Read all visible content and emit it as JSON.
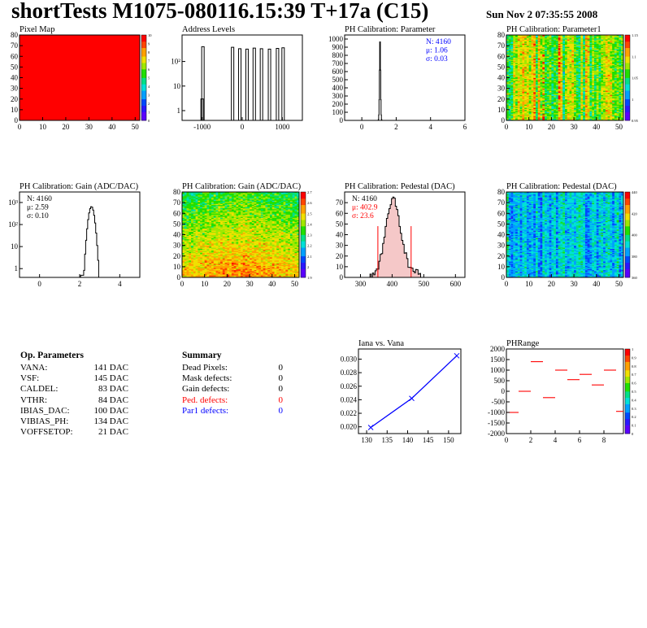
{
  "header": {
    "title": "shortTests M1075-080116.15:39 T+17a (C15)",
    "date": "Sun Nov  2 07:35:55 2008"
  },
  "palette": [
    "#5a00ff",
    "#2a18ff",
    "#0048ff",
    "#00a0ff",
    "#00e0d8",
    "#00e088",
    "#20e000",
    "#a0e800",
    "#f0e000",
    "#ffa000",
    "#ff4400",
    "#ff0000"
  ],
  "op_params": {
    "title": "Op. Parameters",
    "rows": [
      {
        "k": "VANA:",
        "v": "141 DAC"
      },
      {
        "k": "VSF:",
        "v": "145 DAC"
      },
      {
        "k": "CALDEL:",
        "v": "83 DAC"
      },
      {
        "k": "VTHR:",
        "v": "84 DAC"
      },
      {
        "k": "IBIAS_DAC:",
        "v": "100 DAC"
      },
      {
        "k": "VIBIAS_PH:",
        "v": "134 DAC"
      },
      {
        "k": "VOFFSETOP:",
        "v": "21 DAC"
      }
    ]
  },
  "summary": {
    "title": "Summary",
    "rows": [
      {
        "k": "Dead Pixels:",
        "v": "0",
        "color": "#000000"
      },
      {
        "k": "Mask defects:",
        "v": "0",
        "color": "#000000"
      },
      {
        "k": "Gain defects:",
        "v": "0",
        "color": "#000000"
      },
      {
        "k": "Ped. defects:",
        "v": "0",
        "color": "#ff0000"
      },
      {
        "k": "Par1 defects:",
        "v": "0",
        "color": "#0000ff"
      }
    ]
  },
  "chart_data": [
    {
      "id": "pixel_map",
      "type": "heatmap",
      "title": "Pixel Map",
      "xlim": [
        0,
        52
      ],
      "ylim": [
        0,
        80
      ],
      "xticks": [
        0,
        10,
        20,
        30,
        40,
        50
      ],
      "yticks": [
        0,
        10,
        20,
        30,
        40,
        50,
        60,
        70,
        80
      ],
      "z_uniform": 10,
      "zticks": [
        "0",
        "1",
        "2",
        "3",
        "4",
        "5",
        "6",
        "7",
        "8",
        "9",
        "10"
      ]
    },
    {
      "id": "address_levels",
      "type": "bar",
      "title": "Address Levels",
      "xlim": [
        -1500,
        1500
      ],
      "log_y": true,
      "xticks": [
        -1000,
        0,
        1000
      ],
      "yticks": [
        {
          "v": 1,
          "l": "1"
        },
        {
          "v": 10,
          "l": "10"
        },
        {
          "v": 100,
          "l": "10²"
        }
      ],
      "ymin": 0.4,
      "ymax": 1200,
      "peaks": [
        {
          "x": -1000,
          "y": 3
        },
        {
          "x": -980,
          "y": 400
        },
        {
          "x": -240,
          "y": 380
        },
        {
          "x": -60,
          "y": 330
        },
        {
          "x": 120,
          "y": 320
        },
        {
          "x": 300,
          "y": 350
        },
        {
          "x": 480,
          "y": 330
        },
        {
          "x": 680,
          "y": 320
        },
        {
          "x": 880,
          "y": 340
        },
        {
          "x": 1020,
          "y": 360
        }
      ]
    },
    {
      "id": "ph_param",
      "type": "bar",
      "title": "PH Calibration: Parameter",
      "xlim": [
        -1,
        6
      ],
      "ylim": [
        0,
        1050
      ],
      "xticks": [
        0,
        2,
        4,
        6
      ],
      "yticks": [
        0,
        100,
        200,
        300,
        400,
        500,
        600,
        700,
        800,
        900,
        1000
      ],
      "stats": [
        {
          "t": "N: 4160",
          "c": "#0000ff"
        },
        {
          "t": "μ: 1.06",
          "c": "#0000ff"
        },
        {
          "t": "σ: 0.03",
          "c": "#0000ff"
        }
      ],
      "mean": 1.06,
      "sigma": 0.03,
      "peak": 1020
    },
    {
      "id": "ph_param1_map",
      "type": "heatmap",
      "title": "PH Calibration: Parameter1",
      "xlim": [
        0,
        52
      ],
      "ylim": [
        0,
        80
      ],
      "xticks": [
        0,
        10,
        20,
        30,
        40,
        50
      ],
      "yticks": [
        0,
        10,
        20,
        30,
        40,
        50,
        60,
        70,
        80
      ],
      "zticks": [
        "0.95",
        "1",
        "1.05",
        "1.1",
        "1.15"
      ]
    },
    {
      "id": "ph_gain",
      "type": "bar",
      "title": "PH Calibration: Gain (ADC/DAC)",
      "xlim": [
        -1,
        5
      ],
      "log_y": true,
      "xticks": [
        0,
        2,
        4
      ],
      "yticks": [
        {
          "v": 1,
          "l": "1"
        },
        {
          "v": 10,
          "l": "10"
        },
        {
          "v": 100,
          "l": "10²"
        },
        {
          "v": 1000,
          "l": "10³"
        }
      ],
      "ymin": 0.4,
      "ymax": 3000,
      "stats": [
        {
          "t": "N: 4160",
          "c": "#000000"
        },
        {
          "t": "μ: 2.59",
          "c": "#000000"
        },
        {
          "t": "σ: 0.10",
          "c": "#000000"
        }
      ],
      "mean": 2.59,
      "sigma": 0.1,
      "peak": 650
    },
    {
      "id": "ph_gain_map",
      "type": "heatmap",
      "title": "PH Calibration: Gain (ADC/DAC)",
      "xlim": [
        0,
        52
      ],
      "ylim": [
        0,
        80
      ],
      "xticks": [
        0,
        10,
        20,
        30,
        40,
        50
      ],
      "yticks": [
        0,
        10,
        20,
        30,
        40,
        50,
        60,
        70,
        80
      ],
      "zticks": [
        "1.9",
        "2",
        "2.1",
        "2.2",
        "2.3",
        "2.4",
        "2.5",
        "2.6",
        "2.7"
      ]
    },
    {
      "id": "ph_pedestal",
      "type": "bar",
      "title": "PH Calibration: Pedestal (DAC)",
      "xlim": [
        250,
        630
      ],
      "ylim": [
        0,
        80
      ],
      "xticks": [
        300,
        400,
        500,
        600
      ],
      "yticks": [
        0,
        10,
        20,
        30,
        40,
        50,
        60,
        70
      ],
      "stats": [
        {
          "t": "N: 4160",
          "c": "#000000"
        },
        {
          "t": "μ: 402.9",
          "c": "#ff0000"
        },
        {
          "t": "σ: 23.6",
          "c": "#ff0000"
        }
      ],
      "mean": 402.9,
      "sigma": 23.6,
      "peak": 73,
      "cut_lines": [
        355,
        460
      ]
    },
    {
      "id": "ph_pedestal_map",
      "type": "heatmap",
      "title": "PH Calibration: Pedestal (DAC)",
      "xlim": [
        0,
        52
      ],
      "ylim": [
        0,
        80
      ],
      "xticks": [
        0,
        10,
        20,
        30,
        40,
        50
      ],
      "yticks": [
        0,
        10,
        20,
        30,
        40,
        50,
        60,
        70,
        80
      ],
      "zticks": [
        "360",
        "380",
        "400",
        "420",
        "440"
      ]
    },
    {
      "id": "iana_vana",
      "type": "line",
      "title": "Iana vs. Vana",
      "xlim": [
        128,
        153
      ],
      "ylim": [
        0.019,
        0.0315
      ],
      "xticks": [
        130,
        135,
        140,
        145,
        150
      ],
      "yticks": [
        0.02,
        0.022,
        0.024,
        0.026,
        0.028,
        0.03
      ],
      "x": [
        131,
        141,
        152
      ],
      "y": [
        0.0199,
        0.0242,
        0.0305
      ]
    },
    {
      "id": "ph_range",
      "type": "scatter",
      "title": "PHRange",
      "xlim": [
        0,
        9.6
      ],
      "ylim": [
        -2000,
        2000
      ],
      "xticks": [
        0,
        2,
        4,
        6,
        8
      ],
      "yticks": [
        -2000,
        -1500,
        -1000,
        -500,
        0,
        500,
        1000,
        1500,
        2000
      ],
      "zticks": [
        "0",
        "0.1",
        "0.2",
        "0.3",
        "0.4",
        "0.5",
        "0.6",
        "0.7",
        "0.8",
        "0.9",
        "1"
      ],
      "segments": [
        {
          "x": 0.5,
          "y": -1000
        },
        {
          "x": 1.5,
          "y": 0
        },
        {
          "x": 2.5,
          "y": 1400
        },
        {
          "x": 3.5,
          "y": -300
        },
        {
          "x": 4.5,
          "y": 1000
        },
        {
          "x": 5.5,
          "y": 550
        },
        {
          "x": 6.5,
          "y": 800
        },
        {
          "x": 7.5,
          "y": 300
        },
        {
          "x": 8.5,
          "y": 1000
        },
        {
          "x": 9.5,
          "y": -950
        }
      ]
    }
  ]
}
